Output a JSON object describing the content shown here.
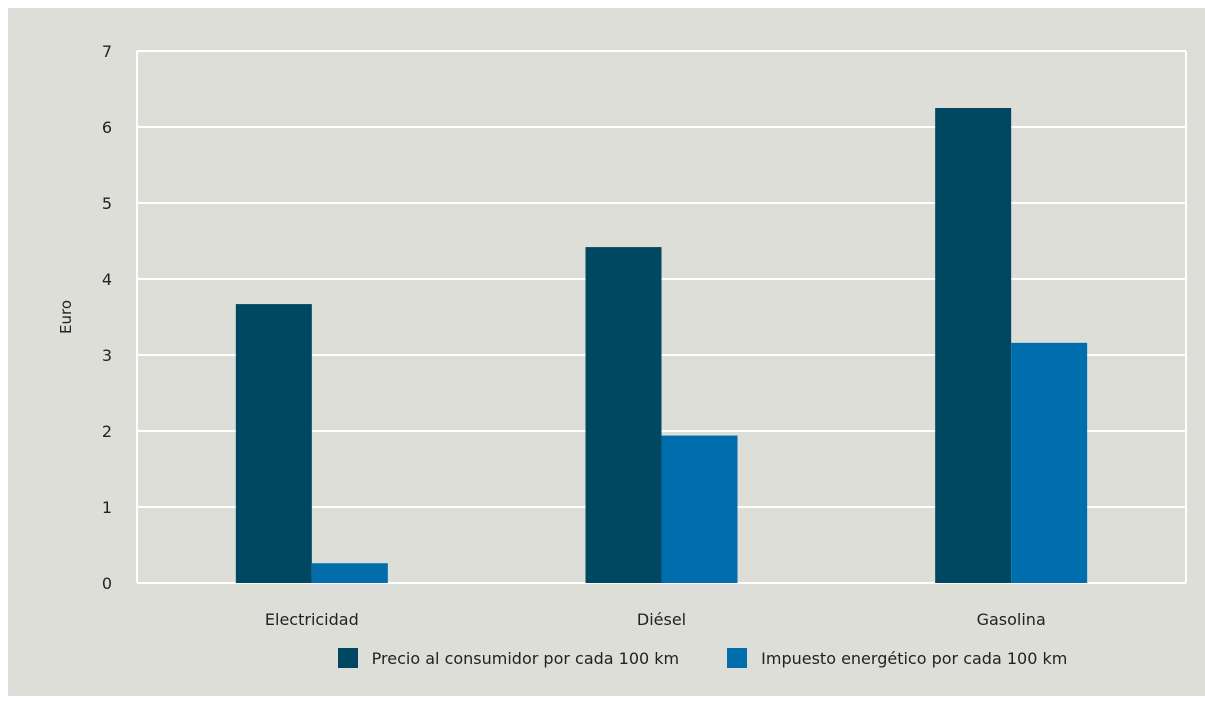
{
  "chart_data": {
    "type": "bar",
    "title": "",
    "xlabel": "",
    "ylabel": "Euro",
    "ylim": [
      0,
      7
    ],
    "yticks": [
      0,
      1,
      2,
      3,
      4,
      5,
      6,
      7
    ],
    "grid": true,
    "legend_position": "bottom",
    "categories": [
      "Electricidad",
      "Diésel",
      "Gasolina"
    ],
    "series": [
      {
        "name": "Precio al consumidor por cada 100 km",
        "color": "#004862",
        "values": [
          3.67,
          4.42,
          6.25
        ]
      },
      {
        "name": "Impuesto energético por cada 100 km",
        "color": "#006ead",
        "values": [
          0.26,
          1.94,
          3.16
        ]
      }
    ]
  }
}
